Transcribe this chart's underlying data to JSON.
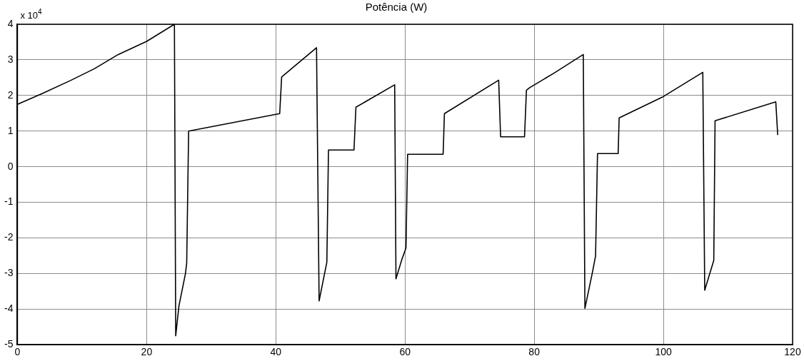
{
  "chart_data": {
    "type": "line",
    "title": "Potência (W)",
    "annotations": [
      "x 10$^{4}$"
    ],
    "x": [
      0,
      3.8,
      8.2,
      11.9,
      15.6,
      20,
      24.3,
      24.5,
      25,
      26,
      26.2,
      26.5,
      40.6,
      40.9,
      46.3,
      46.7,
      47.9,
      48.15,
      52.1,
      52.4,
      58.4,
      58.6,
      59.5,
      60.15,
      60.4,
      65.9,
      66.1,
      74.5,
      74.8,
      78.5,
      78.8,
      79.3,
      83,
      87.6,
      87.85,
      89,
      89.5,
      89.8,
      93,
      93.15,
      99.8,
      106.1,
      106.4,
      107.8,
      108,
      117.4,
      117.7
    ],
    "series": [
      {
        "color": "#000000",
        "values": [
          1.75,
          2.05,
          2.42,
          2.75,
          3.15,
          3.52,
          4,
          -4.75,
          -3.91,
          -3.01,
          -2.71,
          1,
          1.49,
          2.52,
          3.34,
          -3.77,
          -2.68,
          0.47,
          0.47,
          1.67,
          2.3,
          -3.15,
          -2.61,
          -2.28,
          0.35,
          0.35,
          1.49,
          2.43,
          0.84,
          0.84,
          2.15,
          2.22,
          2.62,
          3.15,
          -3.98,
          -2.98,
          -2.51,
          0.37,
          0.37,
          1.37,
          1.95,
          2.65,
          -3.47,
          -2.63,
          1.29,
          1.82,
          0.89
        ]
      }
    ],
    "xlim": [
      0,
      120
    ],
    "xticks": [
      0,
      20,
      40,
      60,
      80,
      100,
      120
    ],
    "ylim": [
      -5,
      4
    ],
    "yticks": [
      -5,
      -4,
      -3,
      -2,
      -1,
      0,
      1,
      2,
      3,
      4
    ],
    "grid": true,
    "legend": false,
    "marker": "none",
    "line_style": "solid"
  }
}
